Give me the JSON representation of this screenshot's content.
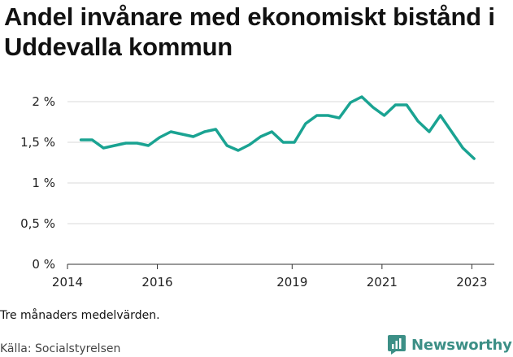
{
  "header": {
    "title": "Andel invånare med ekonomiskt bistånd i Uddevalla kommun"
  },
  "footer": {
    "note": "Tre månaders medelvärden.",
    "source": "Källa: Socialstyrelsen",
    "brand": "Newsworthy"
  },
  "colors": {
    "line": "#1aa392",
    "grid": "#d9d9d9",
    "brand": "#3c8f86"
  },
  "chart_data": {
    "type": "line",
    "title": "Andel invånare med ekonomiskt bistånd i Uddevalla kommun",
    "xlabel": "",
    "ylabel": "",
    "xlim": [
      2014,
      2023.5
    ],
    "ylim": [
      0,
      2
    ],
    "y_ticks": [
      {
        "value": 0,
        "label": "0 %"
      },
      {
        "value": 0.5,
        "label": "0,5 %"
      },
      {
        "value": 1,
        "label": "1 %"
      },
      {
        "value": 1.5,
        "label": "1,5 %"
      },
      {
        "value": 2,
        "label": "2 %"
      }
    ],
    "x_ticks": [
      {
        "value": 2014,
        "label": "2014"
      },
      {
        "value": 2016,
        "label": "2016"
      },
      {
        "value": 2019,
        "label": "2019"
      },
      {
        "value": 2021,
        "label": "2021"
      },
      {
        "value": 2023,
        "label": "2023"
      }
    ],
    "grid": true,
    "series": [
      {
        "name": "Andel invånare med ekonomiskt bistånd",
        "x": [
          2014.3,
          2014.55,
          2014.8,
          2015.05,
          2015.3,
          2015.55,
          2015.8,
          2016.05,
          2016.3,
          2016.55,
          2016.8,
          2017.05,
          2017.3,
          2017.55,
          2017.8,
          2018.05,
          2018.3,
          2018.55,
          2018.8,
          2019.05,
          2019.3,
          2019.55,
          2019.8,
          2020.05,
          2020.3,
          2020.55,
          2020.8,
          2021.05,
          2021.3,
          2021.55,
          2021.8,
          2022.05,
          2022.3,
          2022.55,
          2022.8,
          2023.05
        ],
        "values": [
          1.53,
          1.53,
          1.43,
          1.46,
          1.49,
          1.49,
          1.46,
          1.56,
          1.63,
          1.6,
          1.57,
          1.63,
          1.66,
          1.46,
          1.4,
          1.47,
          1.57,
          1.63,
          1.5,
          1.5,
          1.73,
          1.83,
          1.83,
          1.8,
          1.99,
          2.06,
          1.93,
          1.83,
          1.96,
          1.96,
          1.76,
          1.63,
          1.83,
          1.63,
          1.43,
          1.3
        ]
      }
    ]
  }
}
